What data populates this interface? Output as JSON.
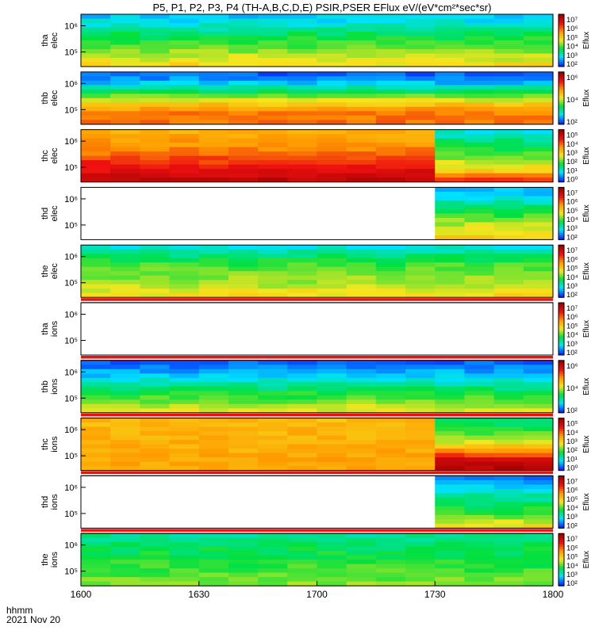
{
  "chart_data": {
    "type": "heatmap",
    "title": "P5, P1, P2, P3, P4 (TH-A,B,C,D,E) PSIR,PSER EFlux eV/(eV*cm²*sec*sr)",
    "x_ticks": [
      "1600",
      "1630",
      "1700",
      "1730",
      "1800"
    ],
    "x_label_line1": "hhmm",
    "x_label_line2": "2021 Nov 20",
    "colorbar_label": "Eflux",
    "colors": {
      "blue": "#0a2cff",
      "cyan": "#00e0ff",
      "green": "#00e040",
      "yellow": "#f5e61e",
      "orange": "#ff9a00",
      "red": "#ee1010",
      "darkred": "#a00000"
    },
    "panels": [
      {
        "label": [
          "tha",
          "elec"
        ],
        "y_ticks": [
          "10⁶",
          "10⁵"
        ],
        "cbar_ticks": [
          "10⁷",
          "10⁶",
          "10⁵",
          "10⁴",
          "10³",
          "10²"
        ],
        "profile": [
          0.15,
          0.22,
          0.32,
          0.38,
          0.45,
          0.52
        ],
        "data_end": 1.0,
        "red_bar": false
      },
      {
        "label": [
          "thb",
          "elec"
        ],
        "y_ticks": [
          "10⁶",
          "10⁵"
        ],
        "cbar_ticks": [
          "10⁶",
          "10⁴",
          "10²"
        ],
        "profile": [
          0.05,
          0.15,
          0.35,
          0.55,
          0.7,
          0.72
        ],
        "data_end": 1.0,
        "red_bar": false
      },
      {
        "label": [
          "thc",
          "elec"
        ],
        "y_ticks": [
          "10⁶",
          "10⁵"
        ],
        "cbar_ticks": [
          "10⁵",
          "10⁴",
          "10³",
          "10²",
          "10¹",
          "10⁰"
        ],
        "profile": [
          0.62,
          0.66,
          0.7,
          0.78,
          0.86,
          0.93
        ],
        "profile_after": [
          0.2,
          0.28,
          0.36,
          0.45,
          0.55,
          0.78
        ],
        "switch_at": 0.75,
        "data_end": 1.0,
        "red_bar": false
      },
      {
        "label": [
          "thd",
          "elec"
        ],
        "y_ticks": [
          "10⁶",
          "10⁵"
        ],
        "cbar_ticks": [
          "10⁷",
          "10⁶",
          "10⁵",
          "10⁴",
          "10³",
          "10²"
        ],
        "profile": [
          0.12,
          0.2,
          0.3,
          0.4,
          0.48,
          0.55
        ],
        "data_start": 0.73,
        "data_end": 1.0,
        "red_bar": false
      },
      {
        "label": [
          "the",
          "elec"
        ],
        "y_ticks": [
          "10⁶",
          "10⁵"
        ],
        "cbar_ticks": [
          "10⁷",
          "10⁶",
          "10⁵",
          "10⁴",
          "10³",
          "10²"
        ],
        "profile": [
          0.2,
          0.3,
          0.38,
          0.42,
          0.46,
          0.52
        ],
        "data_end": 1.0,
        "red_bar": true
      },
      {
        "label": [
          "tha",
          "ions"
        ],
        "y_ticks": [
          "10⁶",
          "10⁵"
        ],
        "cbar_ticks": [
          "10⁷",
          "10⁶",
          "10⁵",
          "10⁴",
          "10³",
          "10²"
        ],
        "profile": [
          0,
          0,
          0,
          0,
          0,
          0
        ],
        "data_end": 0.0,
        "red_bar": true
      },
      {
        "label": [
          "thb",
          "ions"
        ],
        "y_ticks": [
          "10⁶",
          "10⁵"
        ],
        "cbar_ticks": [
          "10⁶",
          "10⁴",
          "10²"
        ],
        "profile": [
          0.05,
          0.12,
          0.22,
          0.32,
          0.4,
          0.5
        ],
        "data_end": 1.0,
        "red_bar": true
      },
      {
        "label": [
          "thc",
          "ions"
        ],
        "y_ticks": [
          "10⁶",
          "10⁵"
        ],
        "cbar_ticks": [
          "10⁵",
          "10⁴",
          "10³",
          "10²",
          "10¹",
          "10⁰"
        ],
        "profile": [
          0.6,
          0.61,
          0.62,
          0.63,
          0.64,
          0.65
        ],
        "profile_after": [
          0.28,
          0.35,
          0.45,
          0.6,
          0.88,
          0.95
        ],
        "switch_at": 0.75,
        "data_end": 1.0,
        "red_bar": true
      },
      {
        "label": [
          "thd",
          "ions"
        ],
        "y_ticks": [
          "10⁶",
          "10⁵"
        ],
        "cbar_ticks": [
          "10⁷",
          "10⁶",
          "10⁵",
          "10⁴",
          "10³",
          "10²"
        ],
        "profile": [
          0.08,
          0.18,
          0.26,
          0.32,
          0.4,
          0.52
        ],
        "data_start": 0.73,
        "data_end": 1.0,
        "red_bar": true
      },
      {
        "label": [
          "the",
          "ions"
        ],
        "y_ticks": [
          "10⁶",
          "10⁵"
        ],
        "cbar_ticks": [
          "10⁷",
          "10⁶",
          "10⁵",
          "10⁴",
          "10³",
          "10²"
        ],
        "profile": [
          0.26,
          0.3,
          0.33,
          0.36,
          0.39,
          0.42
        ],
        "data_end": 1.0,
        "red_bar": false
      }
    ]
  }
}
